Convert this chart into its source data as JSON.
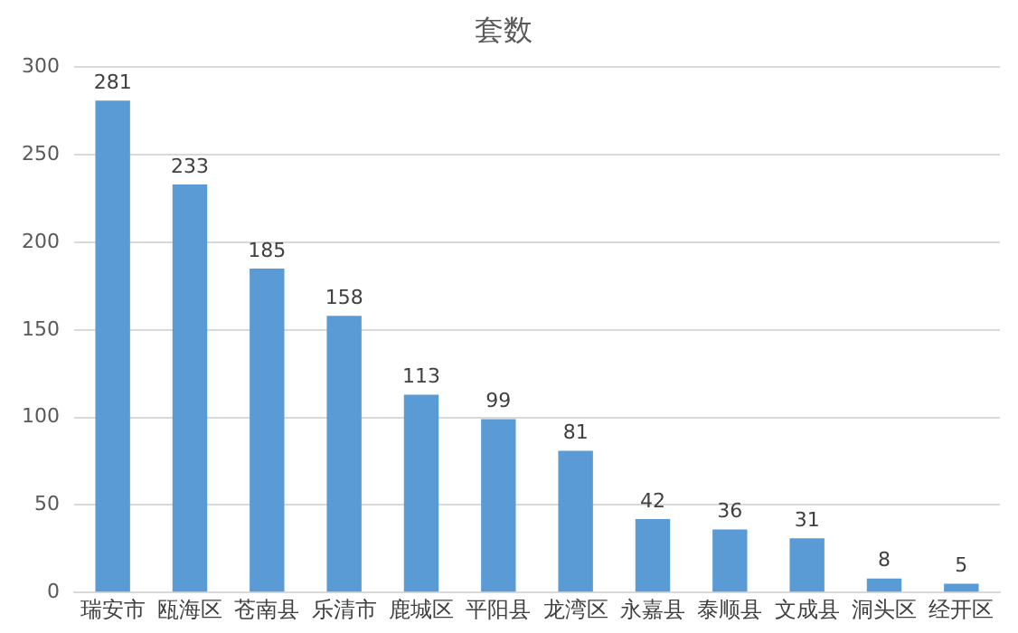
{
  "chart_data": {
    "type": "bar",
    "title": "套数",
    "categories": [
      "瑞安市",
      "瓯海区",
      "苍南县",
      "乐清市",
      "鹿城区",
      "平阳县",
      "龙湾区",
      "永嘉县",
      "泰顺县",
      "文成县",
      "洞头区",
      "经开区"
    ],
    "values": [
      281,
      233,
      185,
      158,
      113,
      99,
      81,
      42,
      36,
      31,
      8,
      5
    ],
    "color": "#5b9bd5",
    "ylim": [
      0,
      300
    ],
    "yticks": [
      0,
      50,
      100,
      150,
      200,
      250,
      300
    ],
    "grid": "y",
    "data_labels": true
  }
}
